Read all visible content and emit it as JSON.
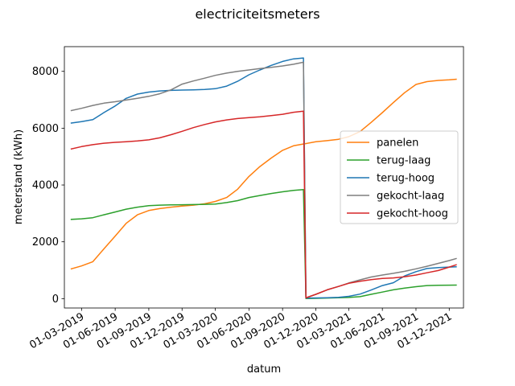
{
  "chart_data": {
    "type": "line",
    "title": "electriciteitsmeters",
    "xlabel": "datum",
    "ylabel": "meterstand (kWh)",
    "xlim": [
      "2019-01-13",
      "2022-01-09"
    ],
    "ylim": [
      -330,
      8870
    ],
    "x_ticks": [
      "2019-03-01",
      "2019-06-01",
      "2019-09-01",
      "2019-12-01",
      "2020-03-01",
      "2020-06-01",
      "2020-09-01",
      "2020-12-01",
      "2021-03-01",
      "2021-06-01",
      "2021-09-01",
      "2021-12-01"
    ],
    "x_tick_labels": [
      "01-03-2019",
      "01-06-2019",
      "01-09-2019",
      "01-12-2019",
      "01-03-2020",
      "01-06-2020",
      "01-09-2020",
      "01-12-2020",
      "01-03-2021",
      "01-06-2021",
      "01-09-2021",
      "01-12-2021"
    ],
    "y_ticks": [
      0,
      2000,
      4000,
      6000,
      8000
    ],
    "y_tick_labels": [
      "0",
      "2000",
      "4000",
      "6000",
      "8000"
    ],
    "grid": false,
    "legend_position": "center-right",
    "series": [
      {
        "name": "panelen",
        "color": "#ff7f0e",
        "points": [
          [
            "2019-02-01",
            1050
          ],
          [
            "2019-03-01",
            1150
          ],
          [
            "2019-04-01",
            1300
          ],
          [
            "2019-05-01",
            1750
          ],
          [
            "2019-06-01",
            2200
          ],
          [
            "2019-07-01",
            2650
          ],
          [
            "2019-08-01",
            2950
          ],
          [
            "2019-09-01",
            3100
          ],
          [
            "2019-10-01",
            3170
          ],
          [
            "2019-11-01",
            3220
          ],
          [
            "2019-12-01",
            3260
          ],
          [
            "2020-01-01",
            3290
          ],
          [
            "2020-02-01",
            3340
          ],
          [
            "2020-03-01",
            3420
          ],
          [
            "2020-04-01",
            3560
          ],
          [
            "2020-05-01",
            3850
          ],
          [
            "2020-06-01",
            4300
          ],
          [
            "2020-07-01",
            4650
          ],
          [
            "2020-08-01",
            4950
          ],
          [
            "2020-09-01",
            5220
          ],
          [
            "2020-10-01",
            5380
          ],
          [
            "2020-11-01",
            5450
          ],
          [
            "2020-12-01",
            5520
          ],
          [
            "2021-01-01",
            5560
          ],
          [
            "2021-02-01",
            5610
          ],
          [
            "2021-03-01",
            5700
          ],
          [
            "2021-04-01",
            5880
          ],
          [
            "2021-05-01",
            6200
          ],
          [
            "2021-06-01",
            6550
          ],
          [
            "2021-07-01",
            6900
          ],
          [
            "2021-08-01",
            7250
          ],
          [
            "2021-09-01",
            7540
          ],
          [
            "2021-10-01",
            7640
          ],
          [
            "2021-11-01",
            7680
          ],
          [
            "2021-12-01",
            7700
          ],
          [
            "2021-12-20",
            7720
          ]
        ]
      },
      {
        "name": "terug-laag",
        "color": "#2ca02c",
        "points": [
          [
            "2019-02-01",
            2790
          ],
          [
            "2019-03-01",
            2810
          ],
          [
            "2019-04-01",
            2850
          ],
          [
            "2019-05-01",
            2950
          ],
          [
            "2019-06-01",
            3050
          ],
          [
            "2019-07-01",
            3150
          ],
          [
            "2019-08-01",
            3220
          ],
          [
            "2019-09-01",
            3270
          ],
          [
            "2019-10-01",
            3290
          ],
          [
            "2019-11-01",
            3300
          ],
          [
            "2019-12-01",
            3305
          ],
          [
            "2020-01-01",
            3310
          ],
          [
            "2020-02-01",
            3320
          ],
          [
            "2020-03-01",
            3330
          ],
          [
            "2020-04-01",
            3380
          ],
          [
            "2020-05-01",
            3450
          ],
          [
            "2020-06-01",
            3560
          ],
          [
            "2020-07-01",
            3630
          ],
          [
            "2020-08-01",
            3700
          ],
          [
            "2020-09-01",
            3760
          ],
          [
            "2020-10-01",
            3810
          ],
          [
            "2020-10-28",
            3840
          ],
          [
            "2020-11-04",
            0
          ],
          [
            "2020-12-01",
            10
          ],
          [
            "2021-01-01",
            20
          ],
          [
            "2021-02-01",
            30
          ],
          [
            "2021-03-01",
            40
          ],
          [
            "2021-04-01",
            70
          ],
          [
            "2021-05-01",
            150
          ],
          [
            "2021-06-01",
            230
          ],
          [
            "2021-07-01",
            310
          ],
          [
            "2021-08-01",
            370
          ],
          [
            "2021-09-01",
            420
          ],
          [
            "2021-10-01",
            460
          ],
          [
            "2021-11-01",
            470
          ],
          [
            "2021-12-01",
            475
          ],
          [
            "2021-12-20",
            478
          ]
        ]
      },
      {
        "name": "terug-hoog",
        "color": "#1f77b4",
        "points": [
          [
            "2019-02-01",
            6180
          ],
          [
            "2019-03-01",
            6230
          ],
          [
            "2019-04-01",
            6300
          ],
          [
            "2019-05-01",
            6550
          ],
          [
            "2019-06-01",
            6780
          ],
          [
            "2019-07-01",
            7050
          ],
          [
            "2019-08-01",
            7200
          ],
          [
            "2019-09-01",
            7270
          ],
          [
            "2019-10-01",
            7310
          ],
          [
            "2019-11-01",
            7330
          ],
          [
            "2019-12-01",
            7340
          ],
          [
            "2020-01-01",
            7350
          ],
          [
            "2020-02-01",
            7360
          ],
          [
            "2020-03-01",
            7390
          ],
          [
            "2020-04-01",
            7480
          ],
          [
            "2020-05-01",
            7650
          ],
          [
            "2020-06-01",
            7880
          ],
          [
            "2020-07-01",
            8050
          ],
          [
            "2020-08-01",
            8210
          ],
          [
            "2020-09-01",
            8350
          ],
          [
            "2020-10-01",
            8440
          ],
          [
            "2020-10-28",
            8470
          ],
          [
            "2020-11-04",
            20
          ],
          [
            "2020-12-01",
            25
          ],
          [
            "2021-01-01",
            30
          ],
          [
            "2021-02-01",
            45
          ],
          [
            "2021-03-01",
            80
          ],
          [
            "2021-04-01",
            160
          ],
          [
            "2021-05-01",
            300
          ],
          [
            "2021-06-01",
            460
          ],
          [
            "2021-07-01",
            560
          ],
          [
            "2021-08-01",
            800
          ],
          [
            "2021-09-01",
            950
          ],
          [
            "2021-10-01",
            1060
          ],
          [
            "2021-11-01",
            1090
          ],
          [
            "2021-12-01",
            1110
          ],
          [
            "2021-12-20",
            1120
          ]
        ]
      },
      {
        "name": "gekocht-laag",
        "color": "#7f7f7f",
        "points": [
          [
            "2019-02-01",
            6620
          ],
          [
            "2019-03-01",
            6700
          ],
          [
            "2019-04-01",
            6800
          ],
          [
            "2019-05-01",
            6880
          ],
          [
            "2019-06-01",
            6930
          ],
          [
            "2019-07-01",
            6990
          ],
          [
            "2019-08-01",
            7050
          ],
          [
            "2019-09-01",
            7120
          ],
          [
            "2019-10-01",
            7210
          ],
          [
            "2019-11-01",
            7350
          ],
          [
            "2019-12-01",
            7550
          ],
          [
            "2020-01-01",
            7660
          ],
          [
            "2020-02-01",
            7760
          ],
          [
            "2020-03-01",
            7860
          ],
          [
            "2020-04-01",
            7940
          ],
          [
            "2020-05-01",
            8000
          ],
          [
            "2020-06-01",
            8050
          ],
          [
            "2020-07-01",
            8100
          ],
          [
            "2020-08-01",
            8140
          ],
          [
            "2020-09-01",
            8190
          ],
          [
            "2020-10-01",
            8250
          ],
          [
            "2020-10-28",
            8320
          ],
          [
            "2020-11-04",
            30
          ],
          [
            "2020-12-01",
            150
          ],
          [
            "2021-01-01",
            310
          ],
          [
            "2021-02-01",
            430
          ],
          [
            "2021-03-01",
            550
          ],
          [
            "2021-04-01",
            660
          ],
          [
            "2021-05-01",
            760
          ],
          [
            "2021-06-01",
            830
          ],
          [
            "2021-07-01",
            890
          ],
          [
            "2021-08-01",
            960
          ],
          [
            "2021-09-01",
            1050
          ],
          [
            "2021-10-01",
            1140
          ],
          [
            "2021-11-01",
            1240
          ],
          [
            "2021-12-01",
            1340
          ],
          [
            "2021-12-20",
            1410
          ]
        ]
      },
      {
        "name": "gekocht-hoog",
        "color": "#d62728",
        "points": [
          [
            "2019-02-01",
            5270
          ],
          [
            "2019-03-01",
            5350
          ],
          [
            "2019-04-01",
            5420
          ],
          [
            "2019-05-01",
            5470
          ],
          [
            "2019-06-01",
            5500
          ],
          [
            "2019-07-01",
            5520
          ],
          [
            "2019-08-01",
            5550
          ],
          [
            "2019-09-01",
            5590
          ],
          [
            "2019-10-01",
            5660
          ],
          [
            "2019-11-01",
            5770
          ],
          [
            "2019-12-01",
            5890
          ],
          [
            "2020-01-01",
            6020
          ],
          [
            "2020-02-01",
            6130
          ],
          [
            "2020-03-01",
            6220
          ],
          [
            "2020-04-01",
            6290
          ],
          [
            "2020-05-01",
            6340
          ],
          [
            "2020-06-01",
            6370
          ],
          [
            "2020-07-01",
            6400
          ],
          [
            "2020-08-01",
            6440
          ],
          [
            "2020-09-01",
            6490
          ],
          [
            "2020-10-01",
            6560
          ],
          [
            "2020-10-28",
            6600
          ],
          [
            "2020-11-04",
            30
          ],
          [
            "2020-12-01",
            150
          ],
          [
            "2021-01-01",
            310
          ],
          [
            "2021-02-01",
            430
          ],
          [
            "2021-03-01",
            540
          ],
          [
            "2021-04-01",
            610
          ],
          [
            "2021-05-01",
            670
          ],
          [
            "2021-06-01",
            710
          ],
          [
            "2021-07-01",
            730
          ],
          [
            "2021-08-01",
            770
          ],
          [
            "2021-09-01",
            830
          ],
          [
            "2021-10-01",
            910
          ],
          [
            "2021-11-01",
            990
          ],
          [
            "2021-12-01",
            1110
          ],
          [
            "2021-12-20",
            1190
          ]
        ]
      }
    ]
  }
}
